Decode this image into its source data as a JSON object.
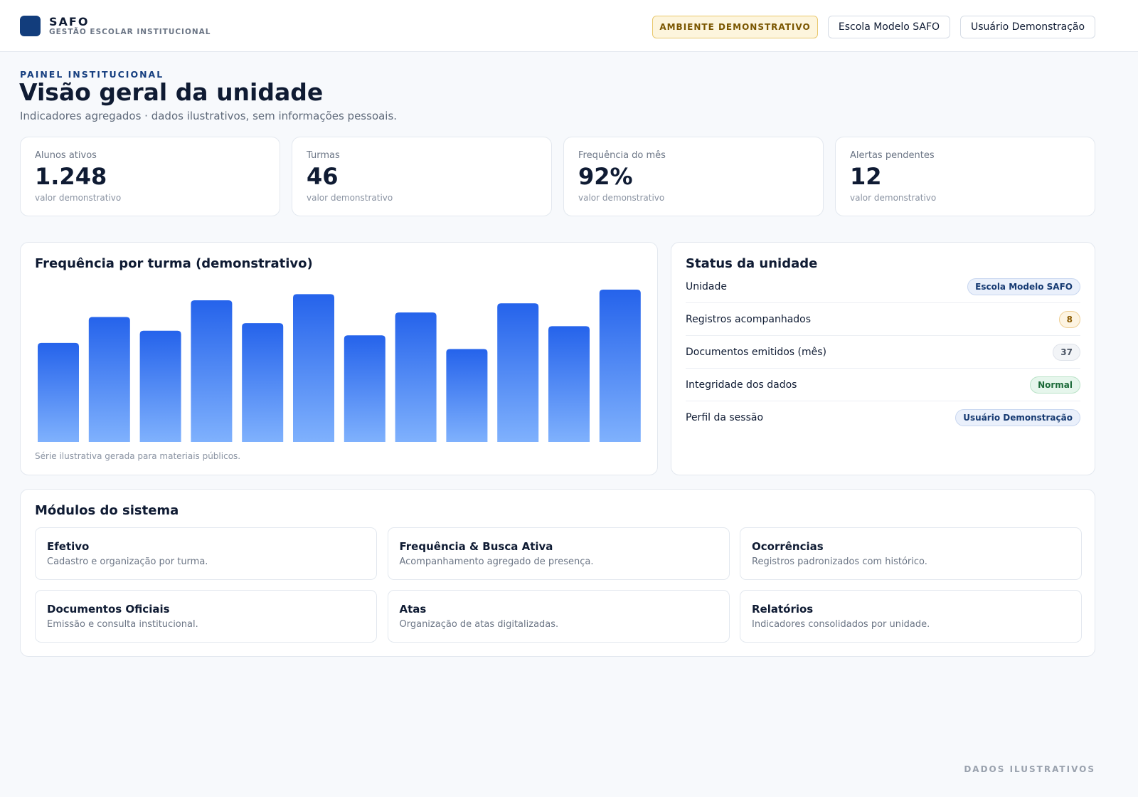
{
  "header": {
    "brand": "SAFO",
    "tagline": "GESTÃO ESCOLAR INSTITUCIONAL",
    "badge": "AMBIENTE DEMONSTRATIVO",
    "school": "Escola Modelo SAFO",
    "user": "Usuário Demonstração"
  },
  "page": {
    "eyebrow": "PAINEL INSTITUCIONAL",
    "title": "Visão geral da unidade",
    "subtitle": "Indicadores agregados · dados ilustrativos, sem informações pessoais."
  },
  "kpis": [
    {
      "label": "Alunos ativos",
      "value": "1.248",
      "note": "valor demonstrativo"
    },
    {
      "label": "Turmas",
      "value": "46",
      "note": "valor demonstrativo"
    },
    {
      "label": "Frequência do mês",
      "value": "92%",
      "note": "valor demonstrativo"
    },
    {
      "label": "Alertas pendentes",
      "value": "12",
      "note": "valor demonstrativo"
    }
  ],
  "chart_data": {
    "type": "bar",
    "title": "Frequência por turma (demonstrativo)",
    "note": "Série ilustrativa gerada para materiais públicos.",
    "values": [
      65,
      82,
      73,
      93,
      78,
      97,
      70,
      85,
      61,
      91,
      76,
      100
    ],
    "colors": [
      "#2563eb",
      "#7fb1fd"
    ]
  },
  "status": {
    "title": "Status da unidade",
    "rows": [
      {
        "label": "Unidade",
        "value": "Escola Modelo SAFO",
        "tone": "blue"
      },
      {
        "label": "Registros acompanhados",
        "value": "8",
        "tone": "amber"
      },
      {
        "label": "Documentos emitidos (mês)",
        "value": "37",
        "tone": "gray"
      },
      {
        "label": "Integridade dos dados",
        "value": "Normal",
        "tone": "green"
      },
      {
        "label": "Perfil da sessão",
        "value": "Usuário Demonstração",
        "tone": "blue"
      }
    ]
  },
  "modules": {
    "title": "Módulos do sistema",
    "items": [
      {
        "title": "Efetivo",
        "desc": "Cadastro e organização por turma."
      },
      {
        "title": "Frequência & Busca Ativa",
        "desc": "Acompanhamento agregado de presença."
      },
      {
        "title": "Ocorrências",
        "desc": "Registros padronizados com histórico."
      },
      {
        "title": "Documentos Oficiais",
        "desc": "Emissão e consulta institucional."
      },
      {
        "title": "Atas",
        "desc": "Organização de atas digitalizadas."
      },
      {
        "title": "Relatórios",
        "desc": "Indicadores consolidados por unidade."
      }
    ]
  },
  "footer": "DADOS ILUSTRATIVOS"
}
